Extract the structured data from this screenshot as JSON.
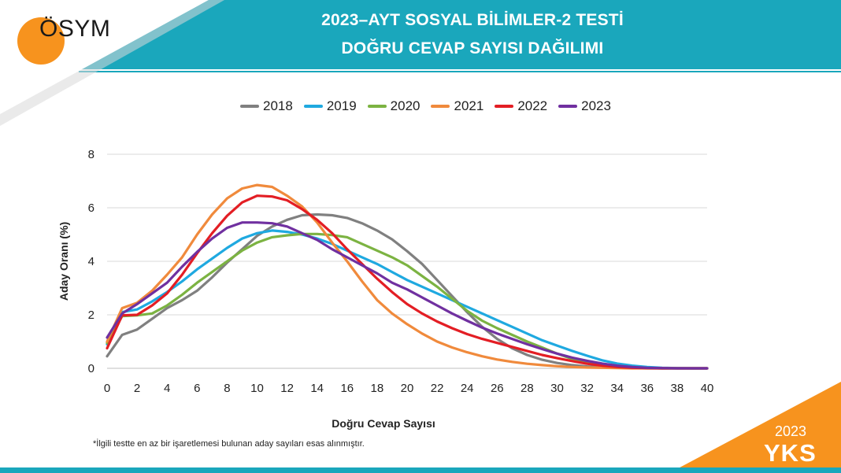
{
  "header": {
    "title_line1": "2023–AYT SOSYAL BİLİMLER-2 TESTİ",
    "title_line2": "DOĞRU CEVAP SAYISI DAĞILIMI",
    "logo_text": "ÖSYM"
  },
  "footnote": "*İlgili testte en az bir işaretlemesi bulunan aday sayıları esas alınmıştır.",
  "badge": {
    "year": "2023",
    "label": "YKS"
  },
  "colors": {
    "teal": "#1aa7bc",
    "orange": "#f7931e"
  },
  "chart_data": {
    "type": "line",
    "title": "",
    "xlabel": "Doğru Cevap Sayısı",
    "ylabel": "Aday Oranı (%)",
    "xlim": [
      0,
      40
    ],
    "ylim": [
      0,
      8
    ],
    "xticks": [
      "0",
      "2",
      "4",
      "6",
      "8",
      "10",
      "12",
      "14",
      "16",
      "18",
      "20",
      "22",
      "24",
      "26",
      "28",
      "30",
      "32",
      "34",
      "36",
      "38",
      "40"
    ],
    "yticks": [
      "0",
      "2",
      "4",
      "6",
      "8"
    ],
    "grid": true,
    "legend_position": "top",
    "series": [
      {
        "name": "2018",
        "color": "#808080",
        "values": [
          0.45,
          1.25,
          1.45,
          1.85,
          2.25,
          2.55,
          2.9,
          3.4,
          3.95,
          4.45,
          4.95,
          5.3,
          5.55,
          5.72,
          5.75,
          5.72,
          5.62,
          5.42,
          5.15,
          4.82,
          4.38,
          3.9,
          3.3,
          2.7,
          2.1,
          1.55,
          1.1,
          0.75,
          0.5,
          0.32,
          0.2,
          0.12,
          0.07,
          0.04,
          0.02,
          0.01,
          0.0,
          0.0,
          0.0,
          0.0,
          0.0
        ]
      },
      {
        "name": "2019",
        "color": "#1fa9e0",
        "values": [
          0.9,
          2.1,
          2.2,
          2.5,
          2.85,
          3.25,
          3.7,
          4.1,
          4.5,
          4.85,
          5.05,
          5.15,
          5.1,
          5.0,
          4.85,
          4.65,
          4.4,
          4.15,
          3.9,
          3.6,
          3.3,
          3.05,
          2.8,
          2.55,
          2.3,
          2.05,
          1.8,
          1.55,
          1.3,
          1.05,
          0.85,
          0.65,
          0.47,
          0.3,
          0.18,
          0.1,
          0.05,
          0.02,
          0.01,
          0.0,
          0.0
        ]
      },
      {
        "name": "2020",
        "color": "#7cb342",
        "values": [
          0.95,
          1.95,
          1.98,
          2.05,
          2.35,
          2.75,
          3.2,
          3.6,
          4.0,
          4.4,
          4.7,
          4.9,
          4.97,
          5.02,
          5.02,
          4.98,
          4.9,
          4.65,
          4.4,
          4.15,
          3.85,
          3.45,
          3.05,
          2.6,
          2.15,
          1.78,
          1.5,
          1.25,
          1.0,
          0.78,
          0.55,
          0.35,
          0.2,
          0.1,
          0.05,
          0.02,
          0.01,
          0.0,
          0.0,
          0.0,
          0.0
        ]
      },
      {
        "name": "2021",
        "color": "#f08a3c",
        "values": [
          1.0,
          2.25,
          2.45,
          2.9,
          3.5,
          4.15,
          5.0,
          5.75,
          6.35,
          6.72,
          6.85,
          6.78,
          6.45,
          6.05,
          5.45,
          4.7,
          4.0,
          3.25,
          2.55,
          2.05,
          1.65,
          1.3,
          1.0,
          0.78,
          0.6,
          0.45,
          0.33,
          0.24,
          0.17,
          0.12,
          0.08,
          0.05,
          0.03,
          0.02,
          0.01,
          0.0,
          0.0,
          0.0,
          0.0,
          0.0,
          0.0
        ]
      },
      {
        "name": "2022",
        "color": "#e31e24",
        "values": [
          0.75,
          1.98,
          2.0,
          2.35,
          2.8,
          3.5,
          4.3,
          5.05,
          5.7,
          6.2,
          6.45,
          6.42,
          6.28,
          5.95,
          5.55,
          5.05,
          4.45,
          3.9,
          3.35,
          2.85,
          2.4,
          2.05,
          1.75,
          1.5,
          1.28,
          1.1,
          0.95,
          0.8,
          0.65,
          0.5,
          0.38,
          0.27,
          0.17,
          0.1,
          0.05,
          0.02,
          0.01,
          0.0,
          0.0,
          0.0,
          0.0
        ]
      },
      {
        "name": "2023",
        "color": "#7030a0",
        "values": [
          1.15,
          2.05,
          2.4,
          2.8,
          3.2,
          3.8,
          4.35,
          4.85,
          5.25,
          5.45,
          5.45,
          5.42,
          5.3,
          5.05,
          4.8,
          4.45,
          4.15,
          3.85,
          3.55,
          3.2,
          2.95,
          2.65,
          2.35,
          2.05,
          1.78,
          1.52,
          1.3,
          1.1,
          0.9,
          0.72,
          0.55,
          0.4,
          0.28,
          0.18,
          0.1,
          0.05,
          0.02,
          0.01,
          0.0,
          0.0,
          0.0
        ]
      }
    ]
  }
}
